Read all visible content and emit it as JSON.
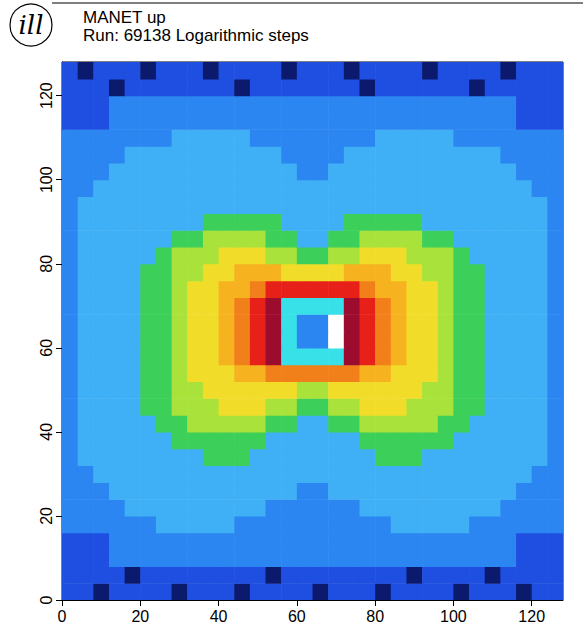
{
  "chart_data": {
    "type": "heatmap",
    "logo": "ill",
    "title": "MANET up",
    "subtitle": "Run: 69138 Logarithmic steps",
    "xlim": [
      0,
      128
    ],
    "ylim": [
      0,
      128
    ],
    "xticks": [
      0,
      20,
      40,
      60,
      80,
      100,
      120
    ],
    "yticks": [
      0,
      20,
      40,
      60,
      80,
      100,
      120
    ],
    "grid": false,
    "zlim": [
      0,
      12
    ],
    "xbins": [
      0,
      4,
      8,
      12,
      16,
      20,
      24,
      28,
      32,
      36,
      40,
      44,
      48,
      52,
      56,
      60,
      64,
      68,
      72,
      76,
      80,
      84,
      88,
      92,
      96,
      100,
      104,
      108,
      112,
      116,
      120,
      124,
      128
    ],
    "ybins": [
      0,
      4,
      8,
      12,
      16,
      20,
      24,
      28,
      32,
      36,
      40,
      44,
      48,
      52,
      56,
      60,
      64,
      68,
      72,
      76,
      80,
      84,
      88,
      92,
      96,
      100,
      104,
      108,
      112,
      116,
      120,
      124,
      128
    ],
    "cells": [
      [
        1,
        1,
        0,
        1,
        1,
        1,
        1,
        0,
        1,
        1,
        1,
        0,
        1,
        1,
        1,
        1,
        0,
        1,
        1,
        1,
        0,
        1,
        1,
        1,
        1,
        0,
        1,
        1,
        1,
        0,
        1,
        1
      ],
      [
        1,
        1,
        1,
        1,
        0,
        1,
        1,
        1,
        1,
        1,
        1,
        1,
        1,
        0,
        1,
        1,
        1,
        1,
        1,
        1,
        1,
        1,
        0,
        1,
        1,
        1,
        1,
        0,
        1,
        1,
        1,
        1
      ],
      [
        1,
        1,
        1,
        2,
        2,
        2,
        2,
        2,
        2,
        2,
        2,
        2,
        2,
        2,
        2,
        2,
        2,
        2,
        2,
        2,
        2,
        2,
        2,
        2,
        2,
        2,
        2,
        2,
        2,
        1,
        1,
        1
      ],
      [
        1,
        1,
        1,
        2,
        2,
        2,
        2,
        2,
        2,
        2,
        2,
        2,
        2,
        2,
        2,
        2,
        2,
        2,
        2,
        2,
        2,
        2,
        2,
        2,
        2,
        2,
        2,
        2,
        2,
        1,
        1,
        1
      ],
      [
        2,
        2,
        2,
        2,
        2,
        2,
        3,
        3,
        3,
        3,
        3,
        2,
        2,
        2,
        2,
        2,
        2,
        2,
        2,
        2,
        2,
        3,
        3,
        3,
        3,
        3,
        2,
        2,
        2,
        2,
        2,
        2
      ],
      [
        2,
        2,
        2,
        2,
        3,
        3,
        3,
        3,
        3,
        3,
        3,
        3,
        3,
        2,
        2,
        2,
        2,
        2,
        2,
        3,
        3,
        3,
        3,
        3,
        3,
        3,
        3,
        3,
        2,
        2,
        2,
        2
      ],
      [
        2,
        2,
        2,
        3,
        3,
        3,
        3,
        3,
        3,
        3,
        3,
        3,
        3,
        3,
        3,
        2,
        2,
        3,
        3,
        3,
        3,
        3,
        3,
        3,
        3,
        3,
        3,
        3,
        3,
        2,
        2,
        2
      ],
      [
        2,
        2,
        3,
        3,
        3,
        3,
        3,
        3,
        3,
        3,
        3,
        3,
        3,
        3,
        3,
        3,
        3,
        3,
        3,
        3,
        3,
        3,
        3,
        3,
        3,
        3,
        3,
        3,
        3,
        3,
        2,
        2
      ],
      [
        2,
        3,
        3,
        3,
        3,
        3,
        3,
        3,
        3,
        4,
        4,
        4,
        3,
        3,
        3,
        3,
        3,
        3,
        3,
        3,
        4,
        4,
        4,
        3,
        3,
        3,
        3,
        3,
        3,
        3,
        3,
        2
      ],
      [
        2,
        3,
        3,
        3,
        3,
        3,
        3,
        4,
        4,
        4,
        4,
        4,
        4,
        3,
        3,
        3,
        3,
        3,
        3,
        4,
        4,
        4,
        4,
        4,
        4,
        3,
        3,
        3,
        3,
        3,
        3,
        2
      ],
      [
        2,
        3,
        3,
        3,
        3,
        3,
        4,
        4,
        5,
        5,
        5,
        5,
        5,
        4,
        4,
        3,
        3,
        4,
        4,
        5,
        5,
        5,
        5,
        5,
        4,
        4,
        3,
        3,
        3,
        3,
        3,
        2
      ],
      [
        2,
        3,
        3,
        3,
        3,
        4,
        4,
        5,
        5,
        5,
        6,
        6,
        6,
        5,
        5,
        4,
        4,
        5,
        5,
        6,
        6,
        6,
        5,
        5,
        5,
        4,
        4,
        3,
        3,
        3,
        3,
        2
      ],
      [
        2,
        3,
        3,
        3,
        3,
        4,
        4,
        5,
        5,
        6,
        6,
        6,
        6,
        6,
        6,
        5,
        5,
        6,
        6,
        6,
        6,
        6,
        6,
        5,
        5,
        4,
        4,
        3,
        3,
        3,
        3,
        2
      ],
      [
        2,
        3,
        3,
        3,
        3,
        4,
        4,
        5,
        6,
        6,
        6,
        7,
        7,
        8,
        8,
        8,
        8,
        8,
        8,
        7,
        7,
        6,
        6,
        6,
        5,
        4,
        4,
        3,
        3,
        3,
        3,
        2
      ],
      [
        2,
        3,
        3,
        3,
        3,
        4,
        4,
        5,
        6,
        6,
        7,
        8,
        9,
        10,
        12,
        12,
        12,
        12,
        10,
        9,
        8,
        7,
        6,
        6,
        5,
        4,
        4,
        3,
        3,
        3,
        3,
        2
      ],
      [
        2,
        3,
        3,
        3,
        3,
        4,
        4,
        5,
        6,
        6,
        7,
        8,
        9,
        10,
        12,
        2,
        2,
        11,
        10,
        9,
        8,
        7,
        6,
        6,
        5,
        4,
        4,
        3,
        3,
        3,
        3,
        2
      ],
      [
        2,
        3,
        3,
        3,
        3,
        4,
        4,
        5,
        6,
        6,
        7,
        8,
        9,
        10,
        12,
        2,
        2,
        11,
        10,
        9,
        8,
        7,
        6,
        6,
        5,
        4,
        4,
        3,
        3,
        3,
        3,
        2
      ],
      [
        2,
        3,
        3,
        3,
        3,
        4,
        4,
        5,
        6,
        6,
        7,
        8,
        9,
        10,
        12,
        12,
        12,
        12,
        10,
        9,
        8,
        7,
        6,
        6,
        5,
        4,
        4,
        3,
        3,
        3,
        3,
        2
      ],
      [
        2,
        3,
        3,
        3,
        3,
        4,
        4,
        5,
        6,
        6,
        7,
        7,
        8,
        9,
        9,
        9,
        9,
        9,
        9,
        8,
        7,
        7,
        6,
        6,
        5,
        4,
        4,
        3,
        3,
        3,
        3,
        2
      ],
      [
        2,
        3,
        3,
        3,
        3,
        4,
        4,
        5,
        5,
        6,
        6,
        7,
        7,
        7,
        6,
        6,
        6,
        6,
        7,
        7,
        7,
        6,
        6,
        5,
        5,
        4,
        4,
        3,
        3,
        3,
        3,
        2
      ],
      [
        2,
        3,
        3,
        3,
        3,
        3,
        4,
        5,
        5,
        5,
        6,
        6,
        6,
        5,
        5,
        4,
        4,
        5,
        5,
        6,
        6,
        6,
        5,
        5,
        5,
        4,
        3,
        3,
        3,
        3,
        3,
        2
      ],
      [
        2,
        3,
        3,
        3,
        3,
        3,
        3,
        4,
        4,
        5,
        5,
        5,
        5,
        4,
        4,
        3,
        3,
        4,
        4,
        5,
        5,
        5,
        5,
        4,
        4,
        3,
        3,
        3,
        3,
        3,
        3,
        2
      ],
      [
        2,
        3,
        3,
        3,
        3,
        3,
        3,
        3,
        3,
        4,
        4,
        4,
        4,
        4,
        3,
        3,
        3,
        3,
        4,
        4,
        4,
        4,
        4,
        3,
        3,
        3,
        3,
        3,
        3,
        3,
        3,
        2
      ],
      [
        2,
        3,
        3,
        3,
        3,
        3,
        3,
        3,
        3,
        3,
        3,
        3,
        3,
        3,
        3,
        3,
        3,
        3,
        3,
        3,
        3,
        3,
        3,
        3,
        3,
        3,
        3,
        3,
        3,
        3,
        3,
        2
      ],
      [
        2,
        2,
        3,
        3,
        3,
        3,
        3,
        3,
        3,
        3,
        3,
        3,
        3,
        3,
        3,
        3,
        3,
        3,
        3,
        3,
        3,
        3,
        3,
        3,
        3,
        3,
        3,
        3,
        3,
        3,
        2,
        2
      ],
      [
        2,
        2,
        2,
        3,
        3,
        3,
        3,
        3,
        3,
        3,
        3,
        3,
        3,
        3,
        3,
        2,
        2,
        3,
        3,
        3,
        3,
        3,
        3,
        3,
        3,
        3,
        3,
        3,
        3,
        2,
        2,
        2
      ],
      [
        2,
        2,
        2,
        2,
        3,
        3,
        3,
        3,
        3,
        3,
        3,
        3,
        3,
        3,
        2,
        2,
        2,
        2,
        3,
        3,
        3,
        3,
        3,
        3,
        3,
        3,
        3,
        3,
        2,
        2,
        2,
        2
      ],
      [
        2,
        2,
        2,
        2,
        2,
        2,
        2,
        3,
        3,
        3,
        3,
        3,
        2,
        2,
        2,
        2,
        2,
        2,
        2,
        2,
        3,
        3,
        3,
        3,
        3,
        2,
        2,
        2,
        2,
        2,
        2,
        2
      ],
      [
        1,
        1,
        1,
        2,
        2,
        2,
        2,
        2,
        2,
        2,
        2,
        2,
        2,
        2,
        2,
        2,
        2,
        2,
        2,
        2,
        2,
        2,
        2,
        2,
        2,
        2,
        2,
        2,
        2,
        1,
        1,
        1
      ],
      [
        1,
        1,
        1,
        2,
        2,
        2,
        2,
        2,
        2,
        2,
        2,
        2,
        2,
        2,
        2,
        2,
        2,
        2,
        2,
        2,
        2,
        2,
        2,
        2,
        2,
        2,
        2,
        2,
        2,
        1,
        1,
        1
      ],
      [
        1,
        1,
        1,
        0,
        1,
        1,
        1,
        1,
        1,
        1,
        1,
        0,
        1,
        1,
        1,
        1,
        1,
        1,
        1,
        0,
        1,
        1,
        1,
        1,
        1,
        1,
        0,
        1,
        1,
        1,
        1,
        1
      ],
      [
        1,
        0,
        1,
        1,
        1,
        0,
        1,
        1,
        1,
        0,
        1,
        1,
        1,
        1,
        0,
        1,
        1,
        1,
        0,
        1,
        1,
        1,
        1,
        0,
        1,
        1,
        1,
        1,
        0,
        1,
        1,
        1
      ]
    ]
  }
}
